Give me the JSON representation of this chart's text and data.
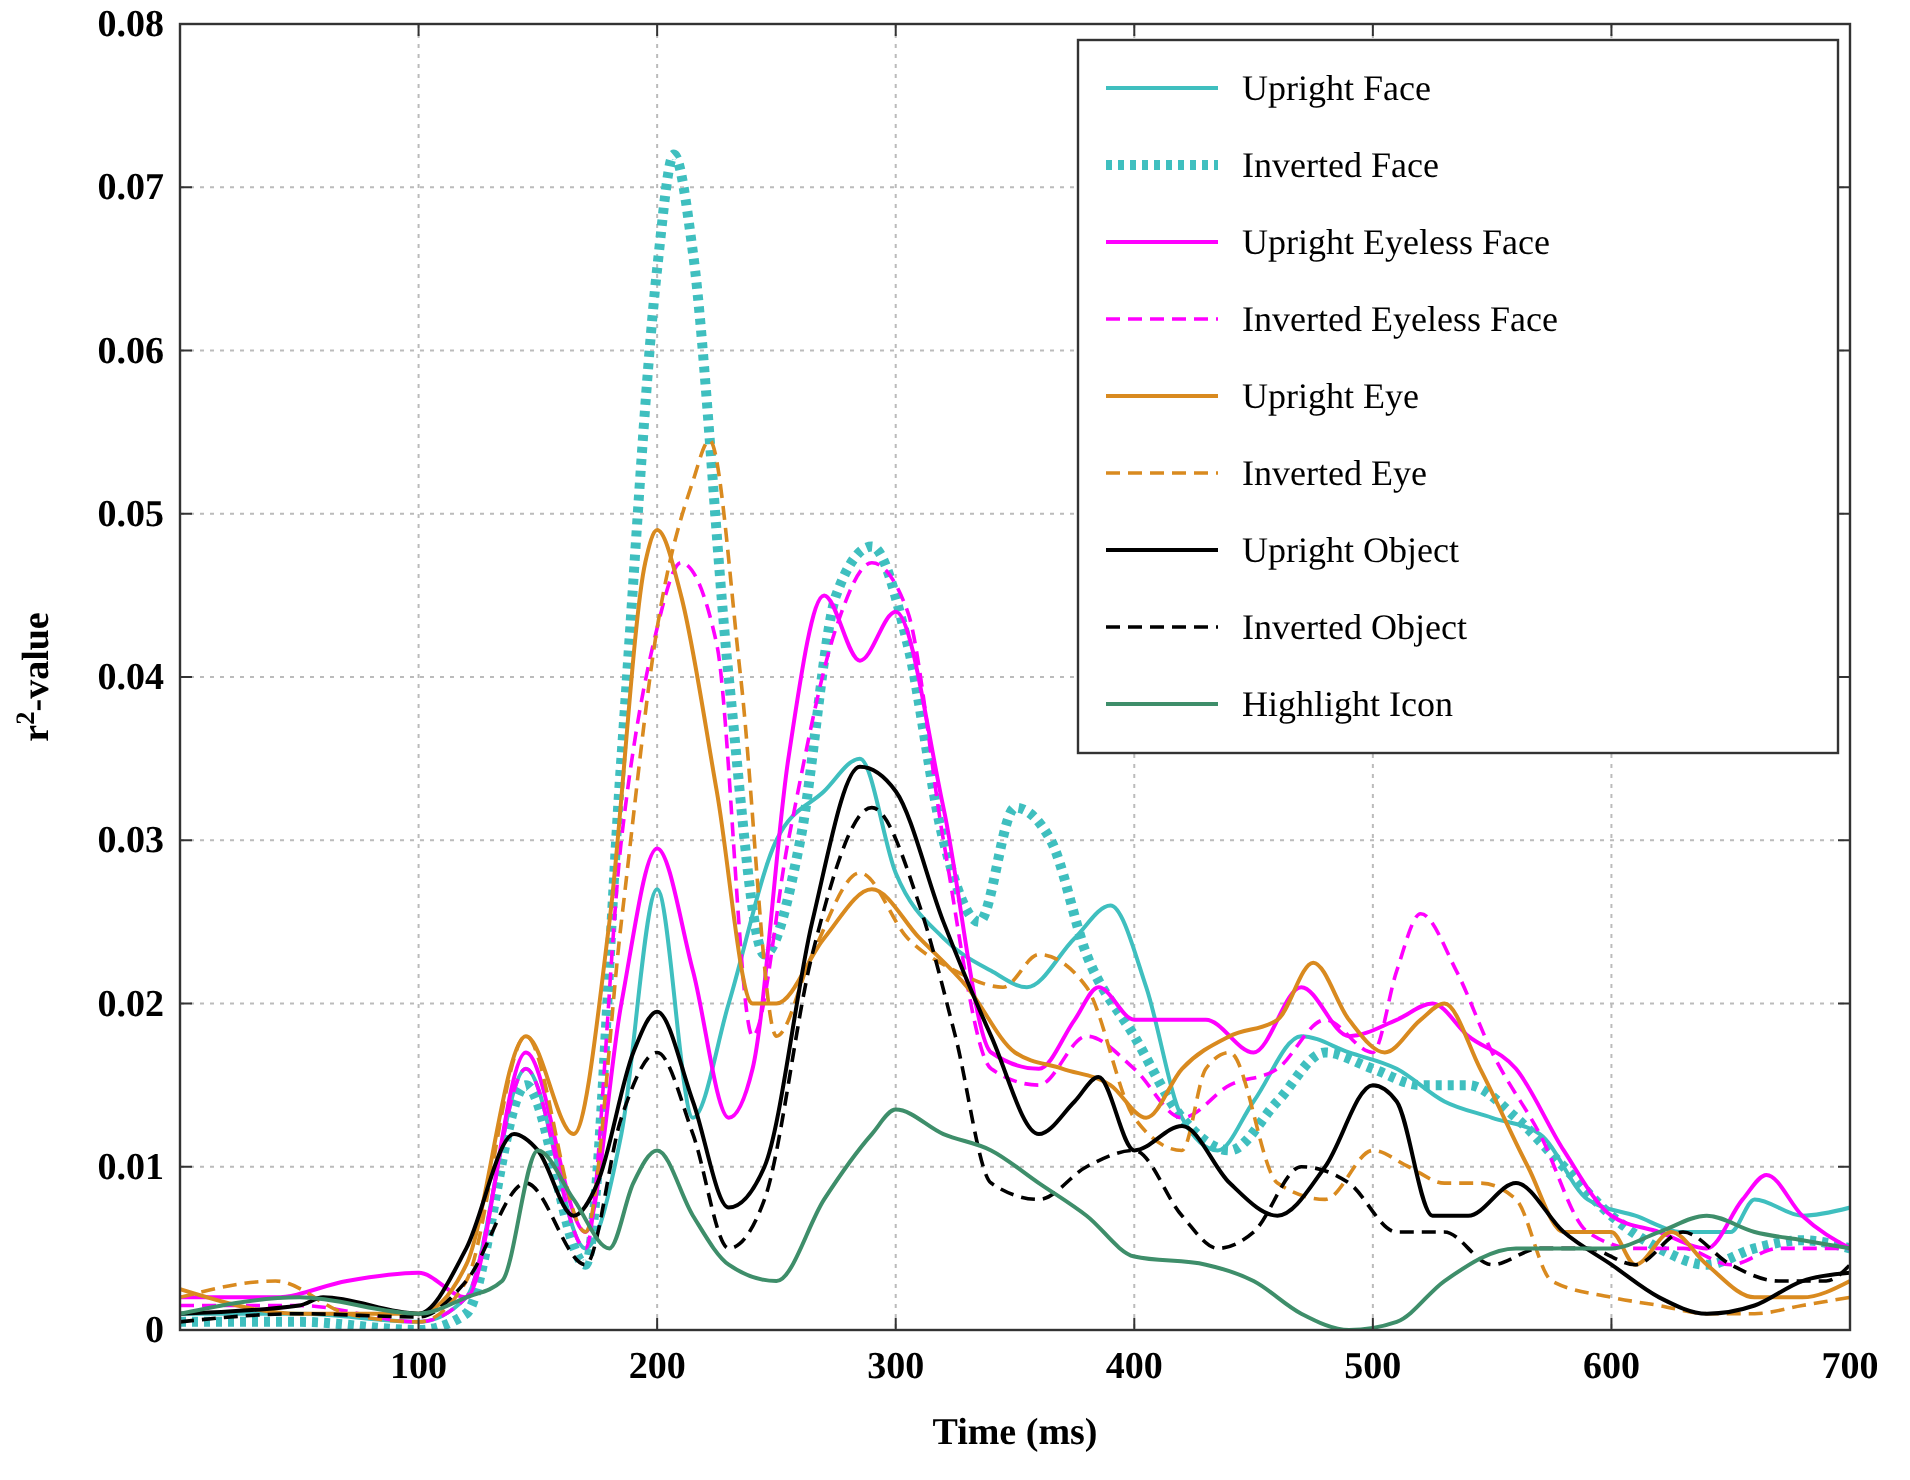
{
  "chart_data": {
    "type": "line",
    "xlabel": "Time (ms)",
    "ylabel": "r$^{2}$-value",
    "xlim": [
      0,
      700
    ],
    "ylim": [
      0,
      0.08
    ],
    "xticks": [
      100,
      200,
      300,
      400,
      500,
      600,
      700
    ],
    "yticks": [
      0,
      0.01,
      0.02,
      0.03,
      0.04,
      0.05,
      0.06,
      0.07,
      0.08
    ],
    "grid": true,
    "legend": "top right",
    "series": [
      {
        "name": "Upright Face",
        "color": "#3fbfbf",
        "line_style": "solid",
        "x": [
          0,
          50,
          100,
          120,
          145,
          170,
          185,
          200,
          215,
          230,
          250,
          270,
          285,
          300,
          320,
          340,
          355,
          375,
          390,
          405,
          420,
          435,
          450,
          470,
          490,
          510,
          530,
          550,
          570,
          590,
          610,
          630,
          650,
          660,
          680,
          700
        ],
        "values": [
          0.001,
          0.001,
          0.0005,
          0.002,
          0.016,
          0.005,
          0.012,
          0.027,
          0.013,
          0.02,
          0.03,
          0.033,
          0.035,
          0.028,
          0.024,
          0.022,
          0.021,
          0.024,
          0.026,
          0.021,
          0.013,
          0.011,
          0.014,
          0.018,
          0.017,
          0.016,
          0.014,
          0.013,
          0.012,
          0.008,
          0.007,
          0.006,
          0.006,
          0.008,
          0.007,
          0.0075
        ]
      },
      {
        "name": "Inverted Face",
        "color": "#3fbfbf",
        "line_style": "dotted",
        "x": [
          0,
          50,
          100,
          120,
          145,
          170,
          185,
          200,
          207,
          215,
          230,
          245,
          260,
          275,
          290,
          305,
          320,
          335,
          350,
          365,
          380,
          400,
          420,
          440,
          460,
          480,
          500,
          520,
          540,
          560,
          580,
          600,
          620,
          640,
          660,
          680,
          700
        ],
        "values": [
          0.0005,
          0.0005,
          0,
          0.001,
          0.015,
          0.004,
          0.035,
          0.065,
          0.072,
          0.066,
          0.04,
          0.023,
          0.03,
          0.045,
          0.048,
          0.042,
          0.03,
          0.025,
          0.032,
          0.03,
          0.023,
          0.018,
          0.013,
          0.011,
          0.014,
          0.017,
          0.016,
          0.015,
          0.015,
          0.013,
          0.01,
          0.007,
          0.005,
          0.004,
          0.005,
          0.0055,
          0.005
        ]
      },
      {
        "name": "Upright Eyeless Face",
        "color": "#ff00ff",
        "line_style": "solid",
        "x": [
          0,
          40,
          70,
          100,
          120,
          145,
          170,
          185,
          200,
          215,
          230,
          240,
          255,
          270,
          285,
          300,
          320,
          340,
          360,
          375,
          385,
          400,
          430,
          450,
          470,
          490,
          510,
          525,
          540,
          560,
          580,
          600,
          620,
          640,
          655,
          665,
          680,
          700
        ],
        "values": [
          0.002,
          0.002,
          0.003,
          0.0035,
          0.002,
          0.017,
          0.006,
          0.02,
          0.0295,
          0.022,
          0.013,
          0.016,
          0.035,
          0.045,
          0.041,
          0.044,
          0.032,
          0.017,
          0.016,
          0.019,
          0.021,
          0.019,
          0.019,
          0.017,
          0.021,
          0.018,
          0.019,
          0.02,
          0.018,
          0.016,
          0.011,
          0.007,
          0.006,
          0.005,
          0.008,
          0.0095,
          0.007,
          0.005
        ]
      },
      {
        "name": "Inverted Eyeless Face",
        "color": "#ff00ff",
        "line_style": "dashed",
        "x": [
          0,
          50,
          100,
          120,
          145,
          170,
          185,
          200,
          210,
          225,
          240,
          255,
          275,
          290,
          305,
          320,
          340,
          360,
          380,
          400,
          420,
          440,
          460,
          480,
          500,
          510,
          520,
          535,
          550,
          570,
          590,
          610,
          630,
          650,
          670,
          700
        ],
        "values": [
          0.0015,
          0.0015,
          0.0005,
          0.002,
          0.016,
          0.005,
          0.03,
          0.043,
          0.047,
          0.042,
          0.018,
          0.03,
          0.043,
          0.047,
          0.044,
          0.03,
          0.016,
          0.015,
          0.018,
          0.016,
          0.013,
          0.015,
          0.016,
          0.019,
          0.017,
          0.022,
          0.0255,
          0.022,
          0.017,
          0.012,
          0.006,
          0.005,
          0.005,
          0.004,
          0.005,
          0.005
        ]
      },
      {
        "name": "Upright Eye",
        "color": "#d98a1f",
        "line_style": "solid",
        "x": [
          0,
          50,
          100,
          120,
          145,
          165,
          180,
          195,
          200,
          210,
          225,
          240,
          250,
          270,
          290,
          310,
          330,
          350,
          370,
          390,
          405,
          420,
          440,
          460,
          475,
          490,
          505,
          520,
          530,
          545,
          565,
          580,
          600,
          610,
          625,
          640,
          660,
          680,
          700
        ],
        "values": [
          0.0025,
          0.001,
          0.001,
          0.004,
          0.018,
          0.012,
          0.025,
          0.047,
          0.049,
          0.045,
          0.033,
          0.02,
          0.02,
          0.024,
          0.027,
          0.024,
          0.021,
          0.017,
          0.016,
          0.015,
          0.013,
          0.016,
          0.018,
          0.019,
          0.0225,
          0.019,
          0.017,
          0.019,
          0.02,
          0.016,
          0.01,
          0.006,
          0.006,
          0.004,
          0.006,
          0.004,
          0.002,
          0.002,
          0.003
        ]
      },
      {
        "name": "Inverted Eye",
        "color": "#d98a1f",
        "line_style": "dashed",
        "x": [
          0,
          40,
          70,
          100,
          120,
          145,
          170,
          185,
          200,
          215,
          222,
          235,
          250,
          265,
          285,
          305,
          325,
          345,
          360,
          380,
          400,
          420,
          430,
          440,
          460,
          480,
          500,
          515,
          530,
          545,
          560,
          575,
          600,
          620,
          640,
          660,
          680,
          700
        ],
        "values": [
          0.002,
          0.003,
          0.001,
          0.0005,
          0.003,
          0.018,
          0.006,
          0.025,
          0.043,
          0.052,
          0.0545,
          0.04,
          0.018,
          0.023,
          0.028,
          0.024,
          0.022,
          0.021,
          0.023,
          0.021,
          0.013,
          0.011,
          0.016,
          0.017,
          0.009,
          0.008,
          0.011,
          0.01,
          0.009,
          0.009,
          0.008,
          0.003,
          0.002,
          0.0015,
          0.001,
          0.001,
          0.0015,
          0.002
        ]
      },
      {
        "name": "Upright Object",
        "color": "#000000",
        "line_style": "solid",
        "x": [
          0,
          50,
          60,
          100,
          120,
          140,
          150,
          165,
          175,
          190,
          200,
          215,
          230,
          245,
          265,
          285,
          300,
          320,
          340,
          360,
          375,
          385,
          400,
          420,
          440,
          460,
          480,
          500,
          510,
          525,
          540,
          560,
          580,
          600,
          620,
          640,
          660,
          680,
          700
        ],
        "values": [
          0.001,
          0.0015,
          0.002,
          0.001,
          0.005,
          0.012,
          0.011,
          0.007,
          0.009,
          0.017,
          0.0195,
          0.014,
          0.0075,
          0.01,
          0.025,
          0.0345,
          0.033,
          0.025,
          0.018,
          0.012,
          0.014,
          0.0155,
          0.011,
          0.0125,
          0.009,
          0.007,
          0.01,
          0.015,
          0.014,
          0.007,
          0.007,
          0.009,
          0.006,
          0.004,
          0.002,
          0.001,
          0.0015,
          0.003,
          0.0035
        ]
      },
      {
        "name": "Inverted Object",
        "color": "#000000",
        "line_style": "dashed",
        "x": [
          0,
          50,
          100,
          120,
          145,
          170,
          185,
          200,
          215,
          230,
          245,
          265,
          290,
          310,
          325,
          340,
          360,
          380,
          400,
          420,
          435,
          450,
          470,
          490,
          510,
          530,
          550,
          570,
          590,
          610,
          630,
          650,
          670,
          690,
          700
        ],
        "values": [
          0.0005,
          0.001,
          0.0008,
          0.003,
          0.009,
          0.004,
          0.013,
          0.017,
          0.012,
          0.005,
          0.008,
          0.023,
          0.032,
          0.026,
          0.018,
          0.009,
          0.008,
          0.01,
          0.011,
          0.007,
          0.005,
          0.006,
          0.01,
          0.009,
          0.006,
          0.006,
          0.004,
          0.005,
          0.005,
          0.004,
          0.006,
          0.004,
          0.003,
          0.003,
          0.004
        ]
      },
      {
        "name": "Highlight Icon",
        "color": "#3e8e6a",
        "line_style": "solid",
        "x": [
          0,
          50,
          100,
          120,
          135,
          150,
          165,
          180,
          190,
          200,
          215,
          230,
          250,
          270,
          290,
          300,
          320,
          340,
          360,
          380,
          400,
          430,
          450,
          470,
          490,
          510,
          530,
          560,
          580,
          600,
          620,
          640,
          660,
          680,
          700
        ],
        "values": [
          0.001,
          0.002,
          0.001,
          0.002,
          0.003,
          0.011,
          0.008,
          0.005,
          0.009,
          0.011,
          0.007,
          0.004,
          0.003,
          0.008,
          0.012,
          0.0135,
          0.012,
          0.011,
          0.009,
          0.007,
          0.0045,
          0.004,
          0.003,
          0.001,
          0,
          0.0005,
          0.003,
          0.005,
          0.005,
          0.005,
          0.006,
          0.007,
          0.006,
          0.0055,
          0.005
        ]
      }
    ]
  }
}
